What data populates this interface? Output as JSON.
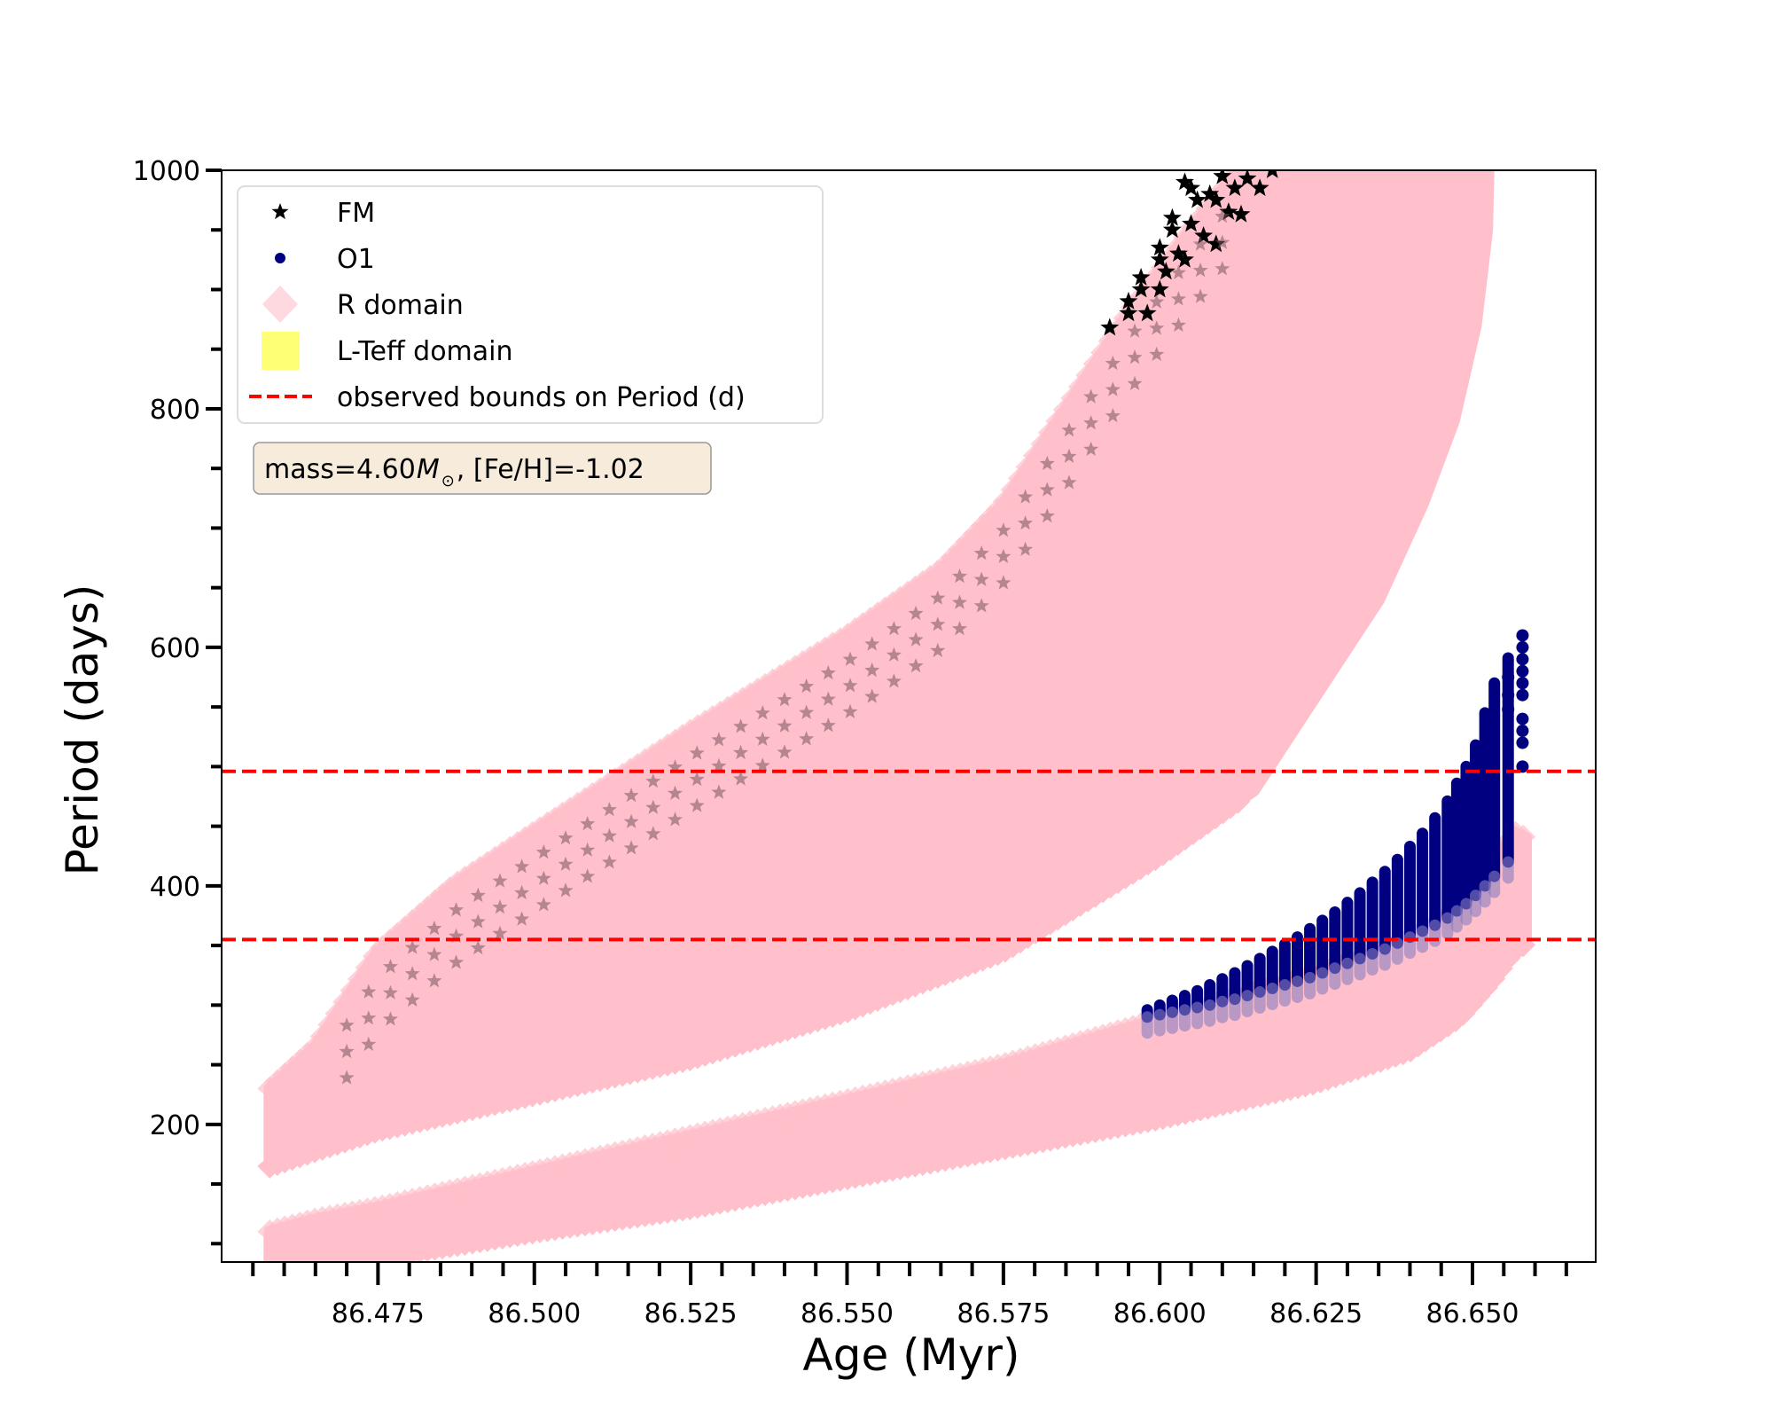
{
  "chart_data": {
    "type": "scatter",
    "title": "",
    "xlabel": "Age (Myr)",
    "ylabel": "Period (days)",
    "xlim": [
      86.45,
      86.6697
    ],
    "ylim": [
      84.6,
      1000
    ],
    "x_major_ticks": [
      86.475,
      86.5,
      86.525,
      86.55,
      86.575,
      86.6,
      86.625,
      86.65
    ],
    "x_tick_labels": [
      "86.475",
      "86.500",
      "86.525",
      "86.550",
      "86.575",
      "86.600",
      "86.625",
      "86.650"
    ],
    "x_minor_step": 0.005,
    "x_minor_range": [
      86.455,
      86.665
    ],
    "y_major_ticks": [
      200,
      400,
      600,
      800,
      1000
    ],
    "y_tick_labels": [
      "200",
      "400",
      "600",
      "800",
      "1000"
    ],
    "y_minor_step": 50,
    "y_minor_range": [
      100,
      1000
    ],
    "grid": false,
    "legend": {
      "placement": "top-left",
      "entries": [
        {
          "label": "FM",
          "marker": "star",
          "color": "#000000"
        },
        {
          "label": "O1",
          "marker": "circle",
          "color": "#000080"
        },
        {
          "label": "R domain",
          "marker": "diamond",
          "color": "#ffc0cb"
        },
        {
          "label": "L-Teff domain",
          "marker": "square",
          "color": "#ffff66"
        },
        {
          "label": "observed bounds on Period (d)",
          "marker": "dashed-line",
          "color": "#ff0000"
        }
      ]
    },
    "annotation": {
      "text_prefix": "mass=4.60",
      "symbol": "M",
      "subscript": "⊙",
      "text_suffix": ", [Fe/H]=-1.02",
      "box_color": "#f5e6d3"
    },
    "hlines": [
      {
        "name": "observed-upper-bound",
        "y": 496,
        "color": "#ff0000",
        "style": "dashed"
      },
      {
        "name": "observed-lower-bound",
        "y": 355,
        "color": "#ff0000",
        "style": "dashed"
      }
    ],
    "series": [
      {
        "name": "R domain (FM band)",
        "kind": "band",
        "color": "#ffc0cb",
        "upper": [
          [
            86.4577,
            230
          ],
          [
            86.465,
            265
          ],
          [
            86.475,
            345
          ],
          [
            86.487,
            400
          ],
          [
            86.5,
            445
          ],
          [
            86.525,
            530
          ],
          [
            86.55,
            610
          ],
          [
            86.565,
            665
          ],
          [
            86.575,
            720
          ],
          [
            86.585,
            800
          ],
          [
            86.595,
            880
          ],
          [
            86.605,
            950
          ],
          [
            86.6125,
            1000
          ]
        ],
        "lower": [
          [
            86.4577,
            165
          ],
          [
            86.465,
            178
          ],
          [
            86.475,
            195
          ],
          [
            86.5,
            225
          ],
          [
            86.525,
            255
          ],
          [
            86.55,
            295
          ],
          [
            86.575,
            345
          ],
          [
            86.6,
            425
          ],
          [
            86.615,
            480
          ],
          [
            86.625,
            560
          ],
          [
            86.635,
            640
          ],
          [
            86.642,
            720
          ],
          [
            86.647,
            790
          ],
          [
            86.6505,
            870
          ],
          [
            86.6523,
            950
          ],
          [
            86.6525,
            1000
          ]
        ]
      },
      {
        "name": "R domain (O1 band)",
        "kind": "band",
        "color": "#ffc0cb",
        "upper": [
          [
            86.4577,
            110
          ],
          [
            86.465,
            120
          ],
          [
            86.475,
            130
          ],
          [
            86.5,
            160
          ],
          [
            86.525,
            190
          ],
          [
            86.55,
            220
          ],
          [
            86.575,
            250
          ],
          [
            86.6,
            288
          ],
          [
            86.625,
            325
          ],
          [
            86.64,
            355
          ],
          [
            86.648,
            380
          ],
          [
            86.653,
            410
          ],
          [
            86.6565,
            445
          ],
          [
            86.6585,
            440
          ]
        ],
        "lower": [
          [
            86.4577,
            75
          ],
          [
            86.465,
            78
          ],
          [
            86.475,
            88
          ],
          [
            86.5,
            110
          ],
          [
            86.525,
            130
          ],
          [
            86.55,
            155
          ],
          [
            86.575,
            180
          ],
          [
            86.6,
            205
          ],
          [
            86.625,
            235
          ],
          [
            86.64,
            262
          ],
          [
            86.648,
            290
          ],
          [
            86.653,
            320
          ],
          [
            86.6565,
            345
          ],
          [
            86.6585,
            352
          ]
        ]
      },
      {
        "name": "FM",
        "kind": "stars",
        "color": "#000000",
        "points": [
          [
            86.592,
            868
          ],
          [
            86.595,
            890
          ],
          [
            86.595,
            880
          ],
          [
            86.597,
            910
          ],
          [
            86.597,
            900
          ],
          [
            86.598,
            880
          ],
          [
            86.6,
            935
          ],
          [
            86.6,
            925
          ],
          [
            86.6,
            900
          ],
          [
            86.601,
            915
          ],
          [
            86.602,
            960
          ],
          [
            86.602,
            950
          ],
          [
            86.603,
            930
          ],
          [
            86.604,
            925
          ],
          [
            86.604,
            990
          ],
          [
            86.605,
            985
          ],
          [
            86.605,
            955
          ],
          [
            86.606,
            975
          ],
          [
            86.607,
            945
          ],
          [
            86.608,
            980
          ],
          [
            86.609,
            975
          ],
          [
            86.609,
            938
          ],
          [
            86.61,
            995
          ],
          [
            86.611,
            965
          ],
          [
            86.612,
            985
          ],
          [
            86.613,
            963
          ],
          [
            86.614,
            993
          ],
          [
            86.616,
            985
          ],
          [
            86.618,
            1000
          ]
        ]
      },
      {
        "name": "O1",
        "kind": "columns",
        "color": "#000080",
        "columns": [
          [
            86.598,
            290,
            296
          ],
          [
            86.6,
            292,
            300
          ],
          [
            86.602,
            294,
            304
          ],
          [
            86.604,
            296,
            308
          ],
          [
            86.606,
            298,
            312
          ],
          [
            86.608,
            300,
            317
          ],
          [
            86.61,
            303,
            322
          ],
          [
            86.612,
            305,
            327
          ],
          [
            86.614,
            308,
            333
          ],
          [
            86.616,
            311,
            339
          ],
          [
            86.618,
            314,
            345
          ],
          [
            86.62,
            317,
            351
          ],
          [
            86.622,
            320,
            357
          ],
          [
            86.624,
            323,
            364
          ],
          [
            86.626,
            327,
            371
          ],
          [
            86.628,
            331,
            378
          ],
          [
            86.63,
            335,
            386
          ],
          [
            86.632,
            339,
            394
          ],
          [
            86.634,
            343,
            403
          ],
          [
            86.636,
            347,
            412
          ],
          [
            86.638,
            352,
            422
          ],
          [
            86.64,
            357,
            433
          ],
          [
            86.642,
            362,
            444
          ],
          [
            86.644,
            367,
            457
          ],
          [
            86.646,
            373,
            471
          ],
          [
            86.6475,
            379,
            486
          ],
          [
            86.649,
            385,
            500
          ],
          [
            86.6505,
            392,
            518
          ],
          [
            86.652,
            400,
            545
          ],
          [
            86.6535,
            408,
            570
          ],
          [
            86.6557,
            420,
            591
          ]
        ],
        "extra_points": [
          [
            86.658,
            610
          ],
          [
            86.658,
            600
          ],
          [
            86.658,
            590
          ],
          [
            86.658,
            580
          ],
          [
            86.658,
            570
          ],
          [
            86.658,
            560
          ],
          [
            86.658,
            540
          ],
          [
            86.658,
            530
          ],
          [
            86.658,
            520
          ],
          [
            86.658,
            500
          ],
          [
            86.6557,
            575
          ],
          [
            86.6557,
            560
          ],
          [
            86.6557,
            548
          ]
        ]
      }
    ]
  }
}
